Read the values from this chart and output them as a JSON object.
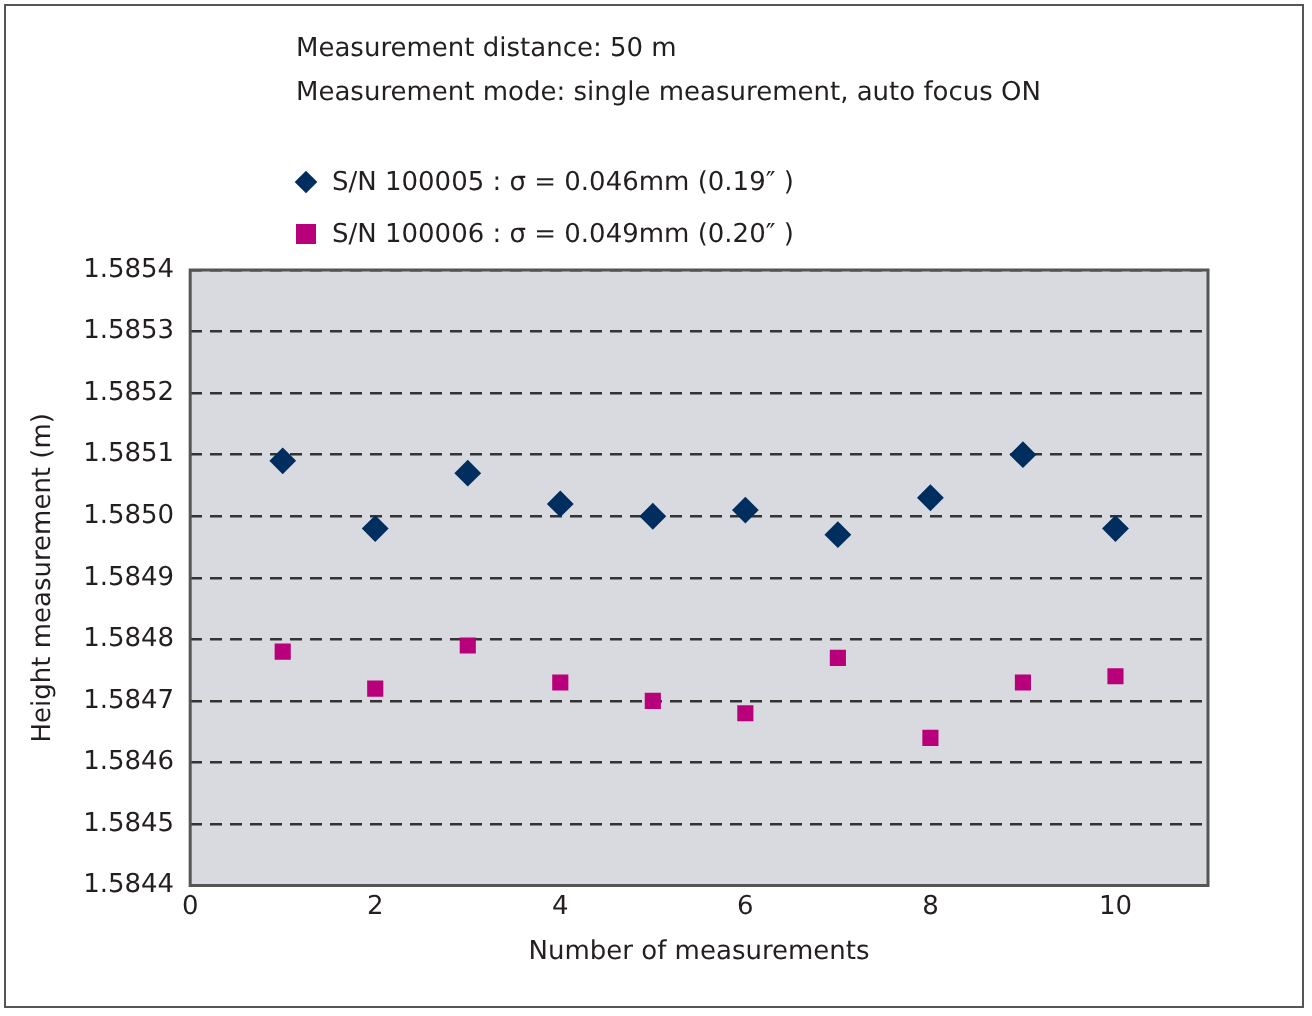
{
  "chart_data": {
    "type": "scatter",
    "annotations": [
      "Measurement distance: 50 m",
      "Measurement mode: single measurement, auto focus ON"
    ],
    "xlabel": "Number of measurements",
    "ylabel": "Height measurement (m)",
    "x": [
      1,
      2,
      3,
      4,
      5,
      6,
      7,
      8,
      9,
      10
    ],
    "series": [
      {
        "name": "S/N 100005 : σ = 0.046mm (0.19″ )",
        "color": "#002e5f",
        "marker": "diamond",
        "values": [
          1.58509,
          1.58498,
          1.58507,
          1.58502,
          1.585,
          1.58501,
          1.58497,
          1.58503,
          1.5851,
          1.58498
        ]
      },
      {
        "name": "S/N 100006 : σ = 0.049mm (0.20″ )",
        "color": "#b8007a",
        "marker": "square",
        "values": [
          1.58478,
          1.58472,
          1.58479,
          1.58473,
          1.5847,
          1.58468,
          1.58477,
          1.58464,
          1.58473,
          1.58474
        ]
      }
    ],
    "xlim": [
      0,
      11
    ],
    "xticks": [
      0,
      2,
      4,
      6,
      8,
      10
    ],
    "ylim": [
      1.5844,
      1.5854
    ],
    "yticks": [
      1.5844,
      1.5845,
      1.5846,
      1.5847,
      1.5848,
      1.5849,
      {
        "value": 1.585,
        "label": "1.5850"
      },
      1.5851,
      1.5852,
      1.5853,
      1.5854
    ],
    "grid": "y",
    "legend": "top left"
  }
}
